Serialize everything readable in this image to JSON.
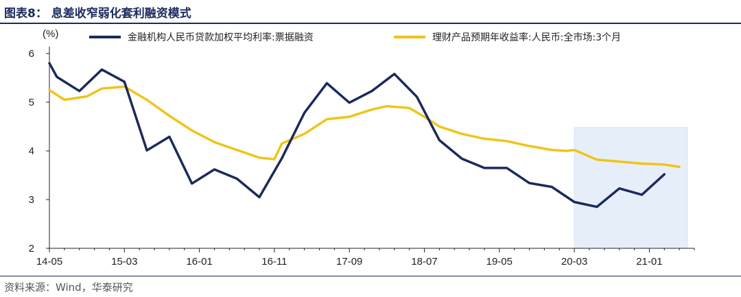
{
  "title": "图表8：  息差收窄弱化套利融资模式",
  "source": "资料来源：Wind，华泰研究",
  "chart_data": {
    "type": "line",
    "ylabel": "(%)",
    "ylim": [
      2,
      6
    ],
    "yticks": [
      "2",
      "3",
      "4",
      "5",
      "6"
    ],
    "xticks": [
      "14-05",
      "15-03",
      "16-01",
      "16-11",
      "17-09",
      "18-07",
      "19-05",
      "20-03",
      "21-01"
    ],
    "xrange": [
      "2014-05",
      "2021-05"
    ],
    "grid": false,
    "highlight_region": {
      "from": "2020-03",
      "to": "2021-05",
      "color": "#e6eff9"
    },
    "series": [
      {
        "name": "金融机构人民币贷款加权平均利率:票据融资",
        "color": "#1b2a5c",
        "points": [
          [
            "2014-05",
            5.8
          ],
          [
            "2014-06",
            5.52
          ],
          [
            "2014-09",
            5.23
          ],
          [
            "2014-12",
            5.67
          ],
          [
            "2015-03",
            5.42
          ],
          [
            "2015-06",
            4.01
          ],
          [
            "2015-09",
            4.29
          ],
          [
            "2015-12",
            3.33
          ],
          [
            "2016-03",
            3.62
          ],
          [
            "2016-06",
            3.43
          ],
          [
            "2016-09",
            3.05
          ],
          [
            "2016-12",
            3.85
          ],
          [
            "2017-03",
            4.78
          ],
          [
            "2017-06",
            5.39
          ],
          [
            "2017-09",
            4.99
          ],
          [
            "2017-12",
            5.23
          ],
          [
            "2018-03",
            5.58
          ],
          [
            "2018-06",
            5.11
          ],
          [
            "2018-09",
            4.22
          ],
          [
            "2018-12",
            3.84
          ],
          [
            "2019-03",
            3.65
          ],
          [
            "2019-06",
            3.65
          ],
          [
            "2019-09",
            3.34
          ],
          [
            "2019-12",
            3.26
          ],
          [
            "2020-03",
            2.95
          ],
          [
            "2020-06",
            2.85
          ],
          [
            "2020-09",
            3.23
          ],
          [
            "2020-12",
            3.1
          ],
          [
            "2021-03",
            3.52
          ]
        ]
      },
      {
        "name": "理财产品预期年收益率:人民币:全市场:3个月",
        "color": "#f0c419",
        "points": [
          [
            "2014-05",
            5.25
          ],
          [
            "2014-07",
            5.05
          ],
          [
            "2014-10",
            5.12
          ],
          [
            "2014-12",
            5.28
          ],
          [
            "2015-03",
            5.32
          ],
          [
            "2015-06",
            5.05
          ],
          [
            "2015-09",
            4.72
          ],
          [
            "2015-12",
            4.42
          ],
          [
            "2016-03",
            4.18
          ],
          [
            "2016-06",
            4.02
          ],
          [
            "2016-09",
            3.86
          ],
          [
            "2016-11",
            3.83
          ],
          [
            "2016-12",
            4.15
          ],
          [
            "2017-03",
            4.35
          ],
          [
            "2017-06",
            4.65
          ],
          [
            "2017-09",
            4.7
          ],
          [
            "2017-12",
            4.85
          ],
          [
            "2018-02",
            4.92
          ],
          [
            "2018-05",
            4.88
          ],
          [
            "2018-07",
            4.7
          ],
          [
            "2018-09",
            4.5
          ],
          [
            "2018-12",
            4.35
          ],
          [
            "2019-03",
            4.25
          ],
          [
            "2019-06",
            4.2
          ],
          [
            "2019-09",
            4.1
          ],
          [
            "2019-12",
            4.02
          ],
          [
            "2020-02",
            4.0
          ],
          [
            "2020-03",
            4.02
          ],
          [
            "2020-06",
            3.82
          ],
          [
            "2020-09",
            3.78
          ],
          [
            "2020-12",
            3.74
          ],
          [
            "2021-03",
            3.72
          ],
          [
            "2021-05",
            3.67
          ]
        ]
      }
    ]
  }
}
